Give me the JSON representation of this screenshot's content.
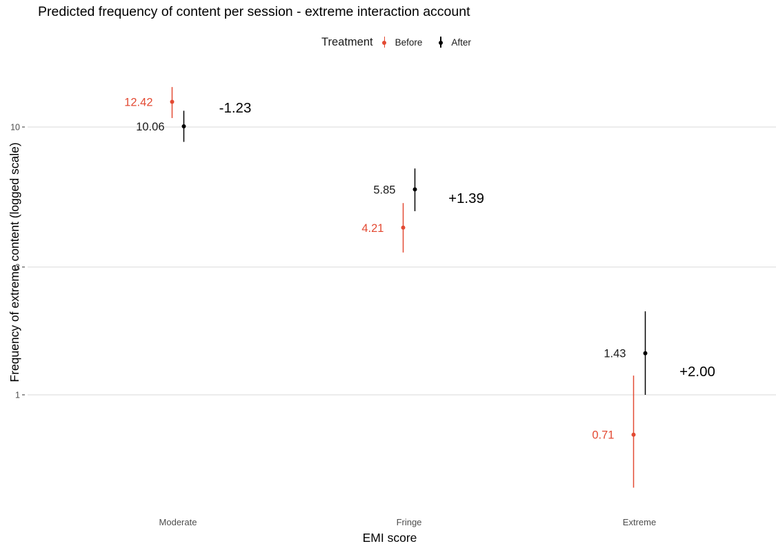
{
  "chart_data": {
    "type": "scatter",
    "title": "Predicted frequency of content per session - extreme interaction account",
    "xlabel": "EMI score",
    "ylabel": "Frequency of extreme content (logged scale)",
    "y_scale": "log",
    "ylim": [
      0.42,
      18
    ],
    "yticks": [
      1,
      3,
      10
    ],
    "categories": [
      "Moderate",
      "Fringe",
      "Extreme"
    ],
    "legend": {
      "title": "Treatment",
      "position": "top"
    },
    "grid": "horizontal major only",
    "series": [
      {
        "name": "Before",
        "color": "#e34a33",
        "values": [
          12.42,
          4.21,
          0.71
        ],
        "lower": [
          10.8,
          3.4,
          0.45
        ],
        "upper": [
          14.1,
          5.2,
          1.18
        ],
        "labels": [
          "12.42",
          "4.21",
          "0.71"
        ]
      },
      {
        "name": "After",
        "color": "#000000",
        "values": [
          10.06,
          5.85,
          1.43
        ],
        "lower": [
          8.8,
          4.85,
          1.0
        ],
        "upper": [
          11.5,
          7.0,
          2.05
        ],
        "labels": [
          "10.06",
          "5.85",
          "1.43"
        ]
      }
    ],
    "annotations": [
      "-1.23",
      "+1.39",
      "+2.00"
    ]
  }
}
